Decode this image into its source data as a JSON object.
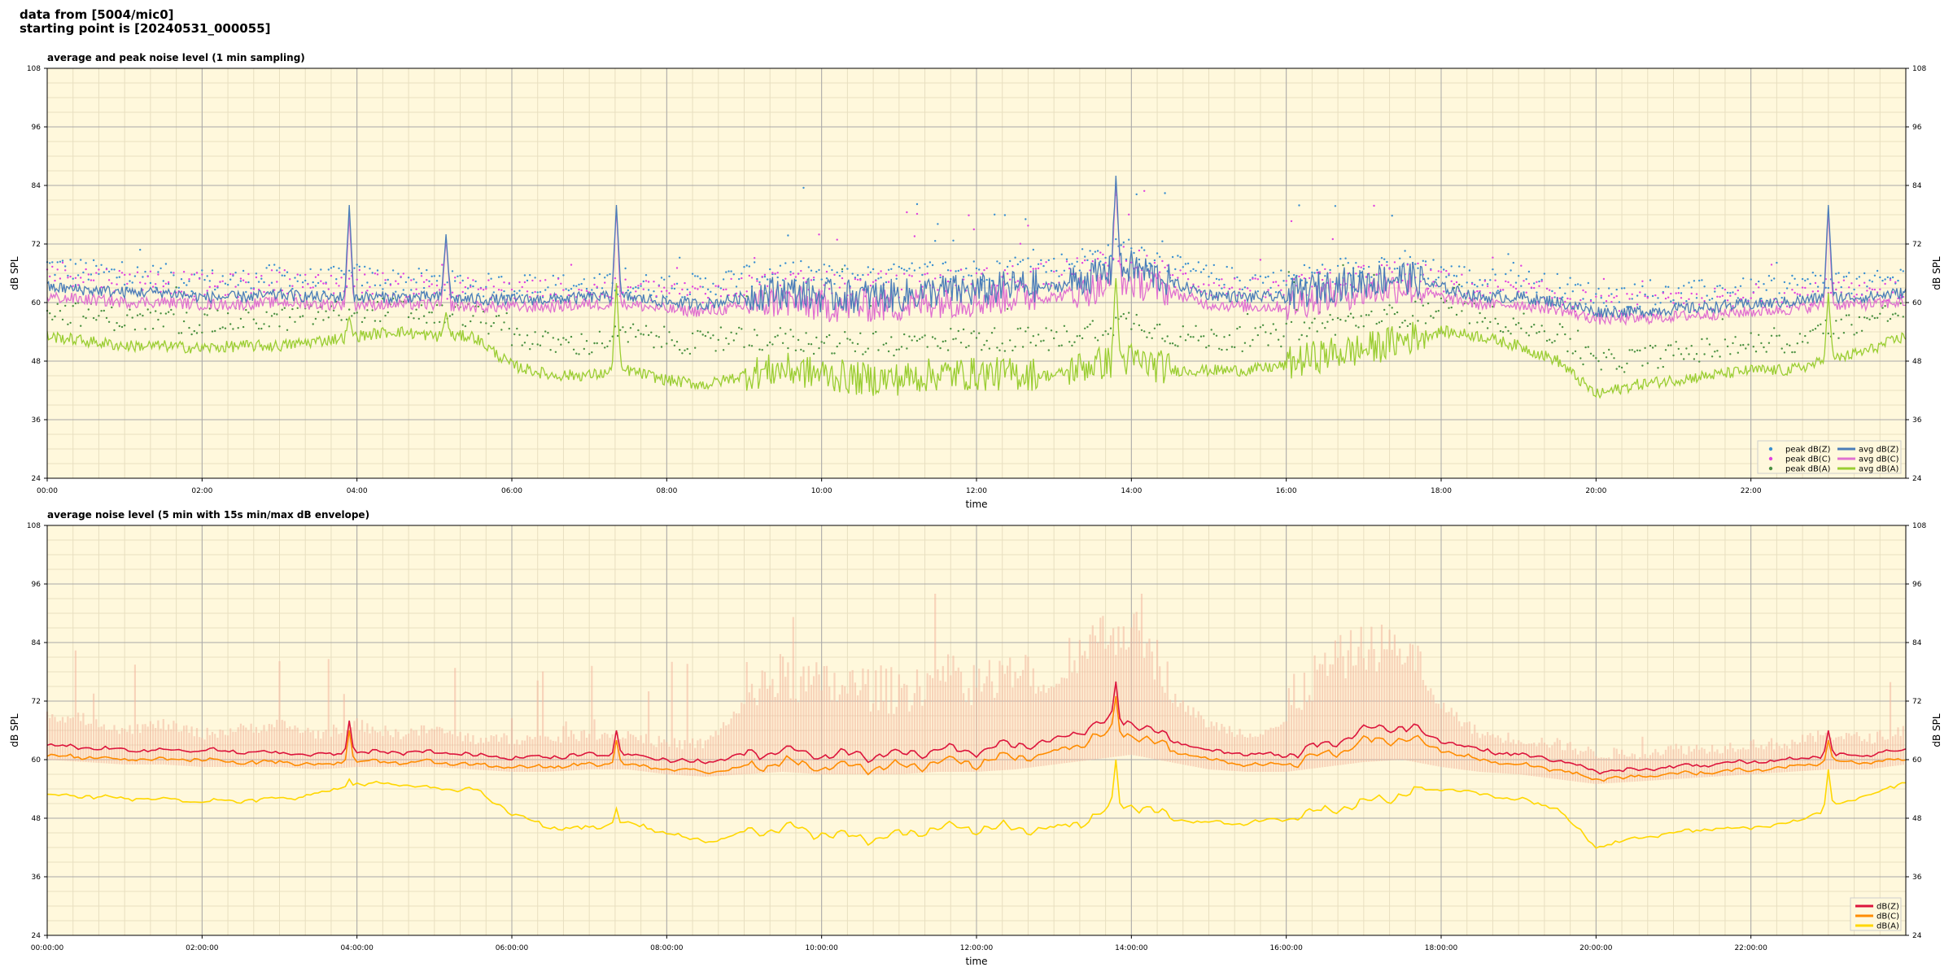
{
  "header": {
    "line1": "data from [5004/mic0]",
    "line2": "starting point is [20240531_000055]"
  },
  "colors": {
    "background": "#fff8dc",
    "grid_major": "#a8a8a8",
    "grid_minor": "#e8dfc0",
    "peak_z": "#3a8fd0",
    "peak_c": "#e040e0",
    "peak_a": "#4a9040",
    "avg_z": "#4a7db8",
    "avg_c": "#e070d0",
    "avg_a": "#9acd32",
    "db_z": "#dc143c",
    "db_c": "#ff8c00",
    "db_a": "#ffd700",
    "envelope": "#f4b8a0"
  },
  "chart_data": [
    {
      "type": "line",
      "title": "average and peak noise level (1 min sampling)",
      "xlabel": "time",
      "ylabel": "dB SPL",
      "ylim": [
        24,
        108
      ],
      "xlim_hours": [
        0,
        24
      ],
      "yticks": [
        "24",
        "36",
        "48",
        "60",
        "72",
        "84",
        "96",
        "108"
      ],
      "xtick_labels": [
        "00:00",
        "02:00",
        "04:00",
        "06:00",
        "08:00",
        "10:00",
        "12:00",
        "14:00",
        "16:00",
        "18:00",
        "20:00",
        "22:00"
      ],
      "grid": true,
      "legend_position": "lower-right",
      "x_hours": [
        0,
        0.5,
        1,
        1.5,
        2,
        2.5,
        3,
        3.5,
        4,
        4.5,
        5,
        5.5,
        6,
        6.5,
        7,
        7.5,
        8,
        8.5,
        9,
        9.5,
        10,
        10.5,
        11,
        11.5,
        12,
        12.5,
        13,
        13.5,
        14,
        14.5,
        15,
        15.5,
        16,
        16.5,
        17,
        17.5,
        18,
        18.5,
        19,
        19.5,
        20,
        20.5,
        21,
        21.5,
        22,
        22.5,
        23,
        23.5,
        24
      ],
      "series": [
        {
          "name": "peak dB(Z)",
          "style": "points",
          "values": [
            66,
            65,
            64,
            64,
            63,
            63,
            64,
            63,
            64,
            63,
            63,
            62,
            62,
            62,
            62,
            62,
            62,
            62,
            64,
            65,
            64,
            64,
            64,
            65,
            65,
            66,
            66,
            68,
            70,
            66,
            64,
            63,
            63,
            65,
            66,
            67,
            65,
            63,
            63,
            62,
            60,
            60,
            60,
            61,
            61,
            62,
            63,
            62,
            64
          ]
        },
        {
          "name": "peak dB(C)",
          "style": "points",
          "values": [
            65,
            64,
            63,
            63,
            62,
            62,
            63,
            62,
            63,
            62,
            62,
            61,
            61,
            61,
            61,
            61,
            61,
            60,
            62,
            63,
            62,
            62,
            62,
            63,
            63,
            64,
            64,
            66,
            68,
            64,
            62,
            61,
            61,
            63,
            64,
            65,
            63,
            61,
            61,
            60,
            58,
            58,
            58,
            59,
            59,
            60,
            61,
            60,
            62
          ]
        },
        {
          "name": "peak dB(A)",
          "style": "points",
          "values": [
            57,
            56,
            55,
            55,
            54,
            55,
            55,
            56,
            57,
            57,
            56,
            56,
            52,
            50,
            50,
            52,
            51,
            50,
            51,
            51,
            50,
            50,
            50,
            51,
            51,
            51,
            51,
            53,
            55,
            52,
            51,
            51,
            52,
            54,
            55,
            56,
            57,
            56,
            54,
            52,
            46,
            47,
            48,
            49,
            50,
            50,
            53,
            55,
            57
          ]
        },
        {
          "name": "avg dB(Z)",
          "style": "line",
          "values": [
            63,
            62.5,
            62,
            62,
            61,
            61,
            61.5,
            61,
            61,
            61,
            61,
            60.5,
            60.5,
            60.5,
            61,
            61,
            60,
            59.5,
            61,
            62,
            61,
            61,
            61,
            62,
            62,
            63,
            63,
            65,
            67,
            64,
            61.5,
            61,
            61,
            63,
            64,
            65,
            63,
            61,
            61,
            60,
            58,
            58,
            58.5,
            59,
            59.5,
            60,
            61,
            61,
            62
          ]
        },
        {
          "name": "avg dB(C)",
          "style": "line",
          "values": [
            61,
            60.5,
            60,
            60,
            59.5,
            59.5,
            60,
            59.5,
            59.5,
            59.5,
            59.5,
            59,
            59,
            59,
            59.5,
            59.5,
            58.5,
            58,
            59,
            60,
            59,
            59,
            59,
            60,
            60,
            61,
            61,
            62.5,
            64,
            62,
            59.5,
            59,
            59,
            61,
            62,
            63,
            61,
            59.5,
            59.5,
            58.5,
            56.5,
            56.5,
            57,
            57.5,
            58,
            58.5,
            59.5,
            59.5,
            60
          ]
        },
        {
          "name": "avg dB(A)",
          "style": "line",
          "values": [
            53,
            52,
            51,
            51,
            50.5,
            51,
            51,
            52,
            53,
            54,
            53,
            53,
            47,
            45,
            45,
            46,
            44,
            43,
            45,
            46,
            45,
            44,
            44,
            45,
            45,
            45,
            45,
            47,
            48,
            46,
            46,
            46,
            47,
            49,
            50,
            52,
            54,
            53,
            51,
            48,
            41,
            43,
            44,
            45,
            46,
            46,
            48,
            50,
            53
          ]
        }
      ],
      "spikes": [
        {
          "hour": 3.9,
          "avg_z": 80,
          "avg_c": 78,
          "avg_a": 57
        },
        {
          "hour": 5.15,
          "avg_z": 74,
          "avg_c": 73,
          "avg_a": 58
        },
        {
          "hour": 7.35,
          "avg_z": 80,
          "avg_c": 79,
          "avg_a": 64
        },
        {
          "hour": 13.8,
          "avg_z": 86,
          "avg_c": 85,
          "avg_a": 65
        },
        {
          "hour": 23.0,
          "avg_z": 80,
          "avg_c": 79,
          "avg_a": 62
        }
      ]
    },
    {
      "type": "area",
      "title": "average noise level (5 min with 15s min/max dB envelope)",
      "xlabel": "time",
      "ylabel": "dB SPL",
      "ylim": [
        24,
        108
      ],
      "xlim_hours": [
        0,
        24
      ],
      "yticks": [
        "24",
        "36",
        "48",
        "60",
        "72",
        "84",
        "96",
        "108"
      ],
      "xtick_labels": [
        "00:00:00",
        "02:00:00",
        "04:00:00",
        "06:00:00",
        "08:00:00",
        "10:00:00",
        "12:00:00",
        "14:00:00",
        "16:00:00",
        "18:00:00",
        "20:00:00",
        "22:00:00"
      ],
      "grid": true,
      "legend_position": "lower-right",
      "x_hours": [
        0,
        0.5,
        1,
        1.5,
        2,
        2.5,
        3,
        3.5,
        4,
        4.5,
        5,
        5.5,
        6,
        6.5,
        7,
        7.5,
        8,
        8.5,
        9,
        9.5,
        10,
        10.5,
        11,
        11.5,
        12,
        12.5,
        13,
        13.5,
        14,
        14.5,
        15,
        15.5,
        16,
        16.5,
        17,
        17.5,
        18,
        18.5,
        19,
        19.5,
        20,
        20.5,
        21,
        21.5,
        22,
        22.5,
        23,
        23.5,
        24
      ],
      "series": [
        {
          "name": "dB(Z)",
          "values": [
            63,
            62.5,
            62,
            62,
            62,
            61.5,
            61.5,
            61,
            61.5,
            61.5,
            61.5,
            61,
            60.5,
            60.5,
            61,
            61,
            60,
            59.5,
            61,
            62,
            61,
            61,
            61,
            62,
            62,
            63,
            64,
            67,
            68,
            64,
            62,
            61,
            61,
            63,
            66,
            67,
            64,
            62,
            61,
            60,
            57.5,
            58,
            58.5,
            59,
            59.5,
            60,
            61,
            61,
            62
          ]
        },
        {
          "name": "dB(C)",
          "values": [
            61,
            60.5,
            60,
            60,
            60,
            59.5,
            59.5,
            59,
            59.5,
            59.5,
            59.5,
            59,
            58.5,
            58.5,
            59,
            59,
            58,
            57.5,
            58.5,
            59.5,
            58.5,
            58.5,
            58.5,
            59.5,
            59.5,
            60.5,
            61.5,
            64.5,
            65.5,
            62,
            60,
            59,
            59,
            61,
            63.5,
            64.5,
            62,
            60,
            59,
            58,
            56,
            56.5,
            57,
            57.5,
            58,
            58.5,
            59.5,
            59.5,
            60
          ]
        },
        {
          "name": "dB(A)",
          "values": [
            53,
            52.5,
            52,
            52,
            51.5,
            51.5,
            52,
            53,
            55,
            55,
            54,
            54,
            49,
            46,
            46,
            47,
            45,
            43,
            45,
            46,
            45,
            44,
            44.5,
            46,
            46,
            46,
            46,
            48,
            51,
            48,
            47,
            47,
            48,
            49.5,
            51,
            53,
            54,
            53,
            52,
            50,
            42,
            44,
            45,
            46,
            46,
            47,
            50,
            53,
            55
          ]
        }
      ],
      "envelope": {
        "upper": [
          68,
          67,
          65,
          66,
          64,
          65,
          66,
          64,
          66,
          64,
          65,
          63,
          63,
          63,
          64,
          64,
          62,
          62,
          70,
          72,
          70,
          70,
          69,
          72,
          71,
          72,
          74,
          80,
          82,
          72,
          66,
          64,
          66,
          74,
          78,
          78,
          70,
          64,
          63,
          62,
          60,
          60,
          61,
          61,
          62,
          62,
          64,
          63,
          65
        ],
        "lower": [
          60,
          59.5,
          59,
          59,
          58.5,
          58.5,
          58.5,
          58,
          58.5,
          58.5,
          58.5,
          58,
          57.5,
          57.5,
          58,
          58,
          57,
          56.5,
          57,
          57.5,
          57,
          57,
          57,
          57.5,
          57.5,
          58,
          59,
          60,
          61,
          59.5,
          58,
          57.5,
          57.5,
          58.5,
          59.5,
          60,
          58.5,
          57.5,
          57,
          56,
          55,
          55.5,
          56,
          56.5,
          57,
          57.5,
          58,
          58,
          59
        ]
      },
      "spikes": [
        {
          "hour": 3.9,
          "z": 68,
          "c": 66,
          "a": 56
        },
        {
          "hour": 7.35,
          "z": 66,
          "c": 64,
          "a": 50
        },
        {
          "hour": 13.8,
          "z": 76,
          "c": 73,
          "a": 60
        },
        {
          "hour": 23.0,
          "z": 66,
          "c": 64,
          "a": 58
        }
      ]
    }
  ]
}
